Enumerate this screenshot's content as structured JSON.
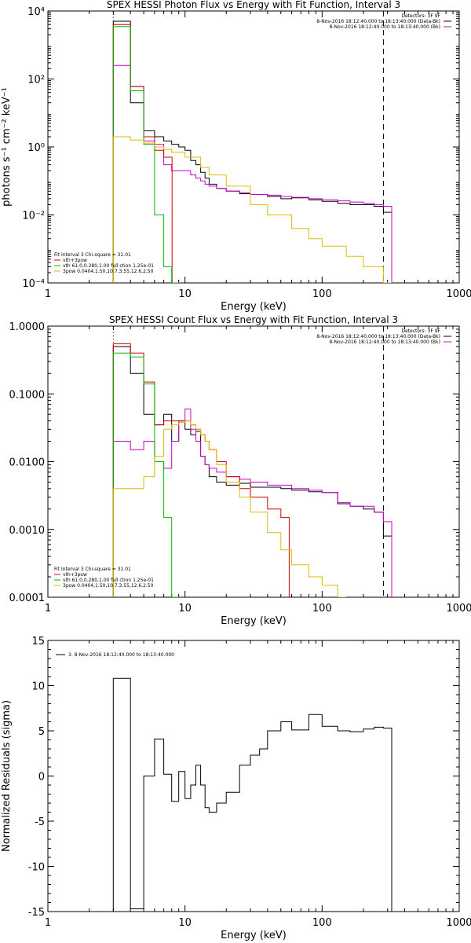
{
  "chart_data": [
    {
      "type": "line",
      "title": "SPEX HESSI Photon Flux vs Energy with Fit Function, Interval 3",
      "xlabel": "Energy (keV)",
      "ylabel": "photons s⁻¹ cm⁻² keV⁻¹",
      "xscale": "log",
      "yscale": "log",
      "xlim": [
        1,
        1000
      ],
      "ylim": [
        0.0001,
        10000
      ],
      "x_ticks": [
        "1",
        "10",
        "100",
        "1000"
      ],
      "y_ticks": [
        "10⁻⁴",
        "10⁻²",
        "10⁰",
        "10²",
        "10⁴"
      ],
      "header_legend": [
        "Detectors: 3F 9F",
        "8-Nov-2016 18:12:40.000 to 18:13:40.000 (Data-Bk)",
        "8-Nov-2016 18:12:40.000 to 18:13:40.000 (Bk)"
      ],
      "fit_legend": [
        "Fit Interval 3    Chi-square = 31.01",
        "vth+3pow",
        "vth 61.0,0.280,1.00  full ction 1.25e-01",
        "3pow 0.0404,1.50,10.7,3.55,12.6,2.50"
      ],
      "vlines": [
        3,
        280
      ],
      "series": [
        {
          "name": "8-Nov-2016 18:12:40.000 to 18:13:40.000 (Data-Bk)",
          "color": "#000000",
          "x": [
            3,
            4,
            5,
            6,
            7,
            8,
            9,
            10,
            11,
            12,
            13,
            14,
            15,
            17,
            20,
            25,
            30,
            40,
            50,
            60,
            80,
            100,
            130,
            160,
            200,
            240,
            280
          ],
          "y": [
            5000,
            20,
            3,
            2,
            1.5,
            1.2,
            1,
            0.8,
            0.4,
            0.3,
            0.18,
            0.12,
            0.08,
            0.06,
            0.05,
            0.042,
            0.04,
            0.035,
            0.03,
            0.032,
            0.028,
            0.025,
            0.022,
            0.02,
            0.02,
            0.018,
            0.012
          ]
        },
        {
          "name": "8-Nov-2016 18:12:40.000 to 18:13:40.000 (Bk)",
          "color": "#cc00cc",
          "x": [
            3,
            4,
            5,
            6,
            7,
            8,
            9,
            10,
            11,
            12,
            13,
            14,
            15,
            17,
            20,
            25,
            30,
            40,
            50,
            60,
            80,
            100,
            130,
            160,
            200,
            240,
            280
          ],
          "y": [
            250,
            60,
            1.5,
            1.2,
            0.3,
            0.2,
            0.2,
            0.2,
            0.15,
            0.12,
            0.1,
            0.08,
            0.07,
            0.06,
            0.05,
            0.045,
            0.04,
            0.038,
            0.035,
            0.033,
            0.03,
            0.028,
            0.026,
            0.024,
            0.022,
            0.02,
            0.018
          ]
        },
        {
          "name": "vth+3pow",
          "color": "#cc0000",
          "x": [
            3,
            4,
            5,
            6,
            7
          ],
          "y": [
            4000,
            60,
            2,
            0.8,
            0.5
          ]
        },
        {
          "name": "vth",
          "color": "#00bb00",
          "x": [
            3,
            4,
            5,
            6,
            7,
            8
          ],
          "y": [
            3500,
            45,
            1.2,
            0.01,
            0.0003,
            0.0001
          ]
        },
        {
          "name": "3pow",
          "color": "#ddbb00",
          "x": [
            3,
            4,
            5,
            6,
            7,
            8,
            10,
            13,
            15,
            20,
            30,
            40,
            60,
            80,
            100,
            150,
            200,
            280
          ],
          "y": [
            2,
            1.6,
            1.3,
            1,
            0.85,
            0.7,
            0.5,
            0.25,
            0.15,
            0.07,
            0.02,
            0.01,
            0.004,
            0.002,
            0.0012,
            0.0006,
            0.0003,
            0.0001
          ]
        }
      ]
    },
    {
      "type": "line",
      "title": "SPEX HESSI Count Flux vs Energy with Fit Function, Interval 3",
      "xlabel": "Energy (keV)",
      "ylabel": "",
      "xscale": "log",
      "yscale": "log",
      "xlim": [
        1,
        1000
      ],
      "ylim": [
        0.0001,
        1
      ],
      "x_ticks": [
        "1",
        "10",
        "100",
        "1000"
      ],
      "y_ticks": [
        "0.0001",
        "0.0010",
        "0.0100",
        "0.1000",
        "1.0000"
      ],
      "header_legend": [
        "Detectors: 3F 9F",
        "8-Nov-2016 18:12:40.000 to 18:13:40.000 (Data-Bk)",
        "8-Nov-2016 18:12:40.000 to 18:13:40.000 (Bk)"
      ],
      "fit_legend": [
        "Fit Interval 3    Chi-square = 31.01",
        "vth+3pow",
        "vth 61.0,0.280,1.00  full ction 1.25e-01",
        "3pow 0.0404,1.50,10.7,3.55,12.6,2.50"
      ],
      "vlines": [
        3,
        280
      ],
      "series": [
        {
          "name": "8-Nov-2016 18:12:40.000 to 18:13:40.000 (Data-Bk)",
          "color": "#000000",
          "x": [
            3,
            4,
            5,
            6,
            7,
            8,
            9,
            10,
            11,
            12,
            13,
            14,
            15,
            17,
            20,
            25,
            30,
            40,
            50,
            60,
            80,
            100,
            130,
            160,
            200,
            240,
            280
          ],
          "y": [
            0.5,
            0.2,
            0.05,
            0.035,
            0.05,
            0.02,
            0.04,
            0.03,
            0.025,
            0.028,
            0.012,
            0.009,
            0.006,
            0.005,
            0.0045,
            0.0048,
            0.0042,
            0.0042,
            0.004,
            0.0038,
            0.0036,
            0.0035,
            0.0024,
            0.0022,
            0.002,
            0.0018,
            0.0008
          ]
        },
        {
          "name": "8-Nov-2016 18:12:40.000 to 18:13:40.000 (Bk)",
          "color": "#cc00cc",
          "x": [
            3,
            4,
            5,
            6,
            7,
            8,
            9,
            10,
            11,
            12,
            13,
            14,
            15,
            17,
            20,
            25,
            30,
            40,
            50,
            60,
            80,
            100,
            130,
            160,
            200,
            240,
            280
          ],
          "y": [
            0.02,
            0.015,
            0.02,
            0.01,
            0.008,
            0.02,
            0.04,
            0.06,
            0.03,
            0.02,
            0.012,
            0.009,
            0.008,
            0.007,
            0.006,
            0.0055,
            0.005,
            0.0045,
            0.0045,
            0.004,
            0.0038,
            0.0035,
            0.0025,
            0.0022,
            0.0022,
            0.0018,
            0.0013
          ]
        },
        {
          "name": "vth+3pow",
          "color": "#cc0000",
          "x": [
            3,
            4,
            5,
            6,
            7,
            8,
            9,
            10,
            11,
            12,
            13,
            14,
            15,
            17,
            20,
            25,
            30,
            40,
            50
          ],
          "y": [
            0.55,
            0.4,
            0.15,
            0.035,
            0.04,
            0.04,
            0.04,
            0.04,
            0.035,
            0.03,
            0.025,
            0.02,
            0.015,
            0.01,
            0.006,
            0.004,
            0.003,
            0.002,
            0.0015
          ]
        },
        {
          "name": "vth",
          "color": "#00bb00",
          "x": [
            3,
            4,
            5,
            6,
            7,
            8
          ],
          "y": [
            0.4,
            0.35,
            0.14,
            0.01,
            0.0015,
            0.0001
          ]
        },
        {
          "name": "3pow",
          "color": "#ddbb00",
          "x": [
            3,
            4,
            5,
            6,
            7,
            8,
            9,
            10,
            11,
            12,
            13,
            14,
            15,
            17,
            20,
            25,
            30,
            40,
            50,
            60,
            80,
            100,
            130
          ],
          "y": [
            0.004,
            0.004,
            0.006,
            0.012,
            0.03,
            0.035,
            0.038,
            0.04,
            0.035,
            0.03,
            0.025,
            0.02,
            0.015,
            0.009,
            0.005,
            0.003,
            0.0018,
            0.0009,
            0.0005,
            0.0003,
            0.0002,
            0.00015,
            0.0001
          ]
        }
      ]
    },
    {
      "type": "line",
      "title": "",
      "xlabel": "Energy (keV)",
      "ylabel": "Normalized Residuals (sigma)",
      "xscale": "log",
      "yscale": "linear",
      "xlim": [
        1,
        1000
      ],
      "ylim": [
        -15,
        15
      ],
      "x_ticks": [
        "1",
        "10",
        "100",
        "1000"
      ],
      "y_ticks": [
        "-15",
        "-10",
        "-5",
        "0",
        "5",
        "10",
        "15"
      ],
      "legend": [
        "3.  8-Nov-2016 18:12:40.000 to 18:13:40.000"
      ],
      "series": [
        {
          "name": "3.  8-Nov-2016 18:12:40.000 to 18:13:40.000",
          "color": "#000000",
          "x": [
            3,
            4,
            5,
            6,
            7,
            8,
            9,
            10,
            11,
            12,
            13,
            14,
            15,
            17,
            20,
            25,
            30,
            35,
            40,
            50,
            60,
            80,
            100,
            130,
            160,
            200,
            240,
            280
          ],
          "y": [
            10.8,
            -14.7,
            0,
            4.1,
            0.2,
            -2.8,
            0.5,
            -2.5,
            -1,
            1.2,
            -1,
            -3.5,
            -4,
            -3,
            -1.8,
            1.2,
            2.3,
            3,
            5,
            6,
            5.1,
            6.8,
            5.5,
            5,
            4.9,
            5.2,
            5.4,
            5.3
          ]
        }
      ]
    }
  ]
}
